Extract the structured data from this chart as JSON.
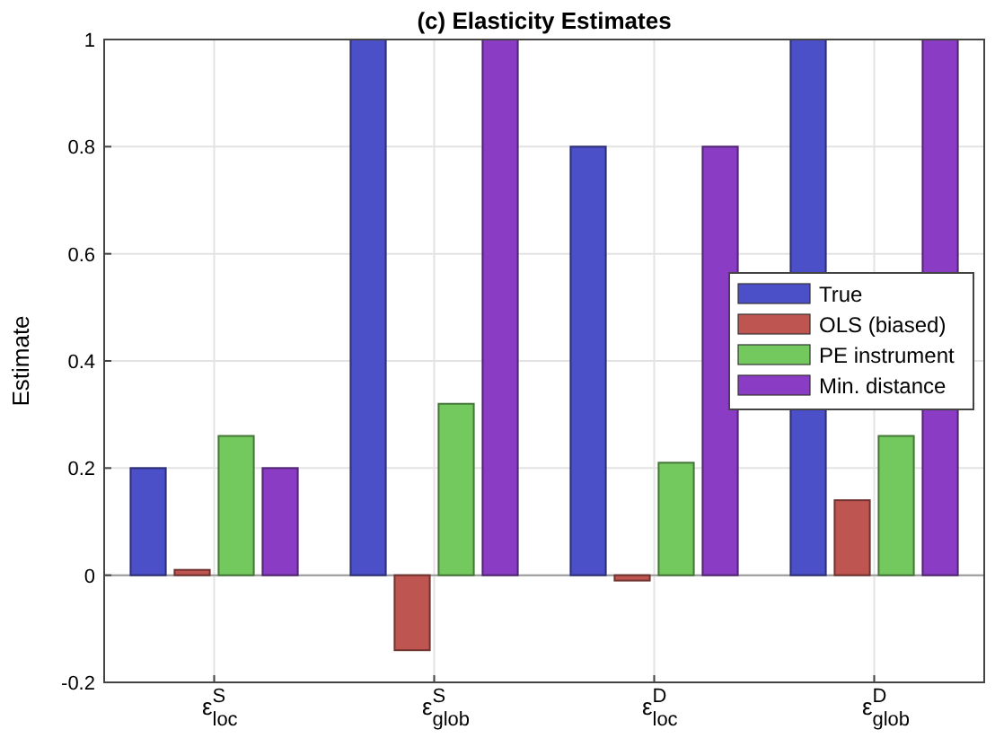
{
  "chart_data": {
    "type": "bar",
    "title": "(c) Elasticity Estimates",
    "ylabel": "Estimate",
    "categories": [
      "ε$^{S}$$_{loc}$",
      "ε$^{S}$$_{glob}$",
      "ε$^{D}$$_{loc}$",
      "ε$^{D}$$_{glob}$"
    ],
    "series": [
      {
        "name": "True",
        "color": "#4b4fc8",
        "values": [
          0.2,
          1,
          0.8,
          1
        ]
      },
      {
        "name": "OLS (biased)",
        "color": "#bf5550",
        "values": [
          0.01,
          -0.14,
          -0.01,
          0.14
        ]
      },
      {
        "name": "PE instrument",
        "color": "#74c95e",
        "values": [
          0.26,
          0.32,
          0.21,
          0.26
        ]
      },
      {
        "name": "Min. distance",
        "color": "#8a3cc4",
        "values": [
          0.2,
          1,
          0.8,
          1
        ]
      }
    ],
    "ylim": [
      -0.2,
      1
    ],
    "yticks": [
      -0.2,
      0,
      0.2,
      0.4,
      0.6,
      0.8,
      1
    ],
    "grid": true,
    "legend": "right"
  }
}
